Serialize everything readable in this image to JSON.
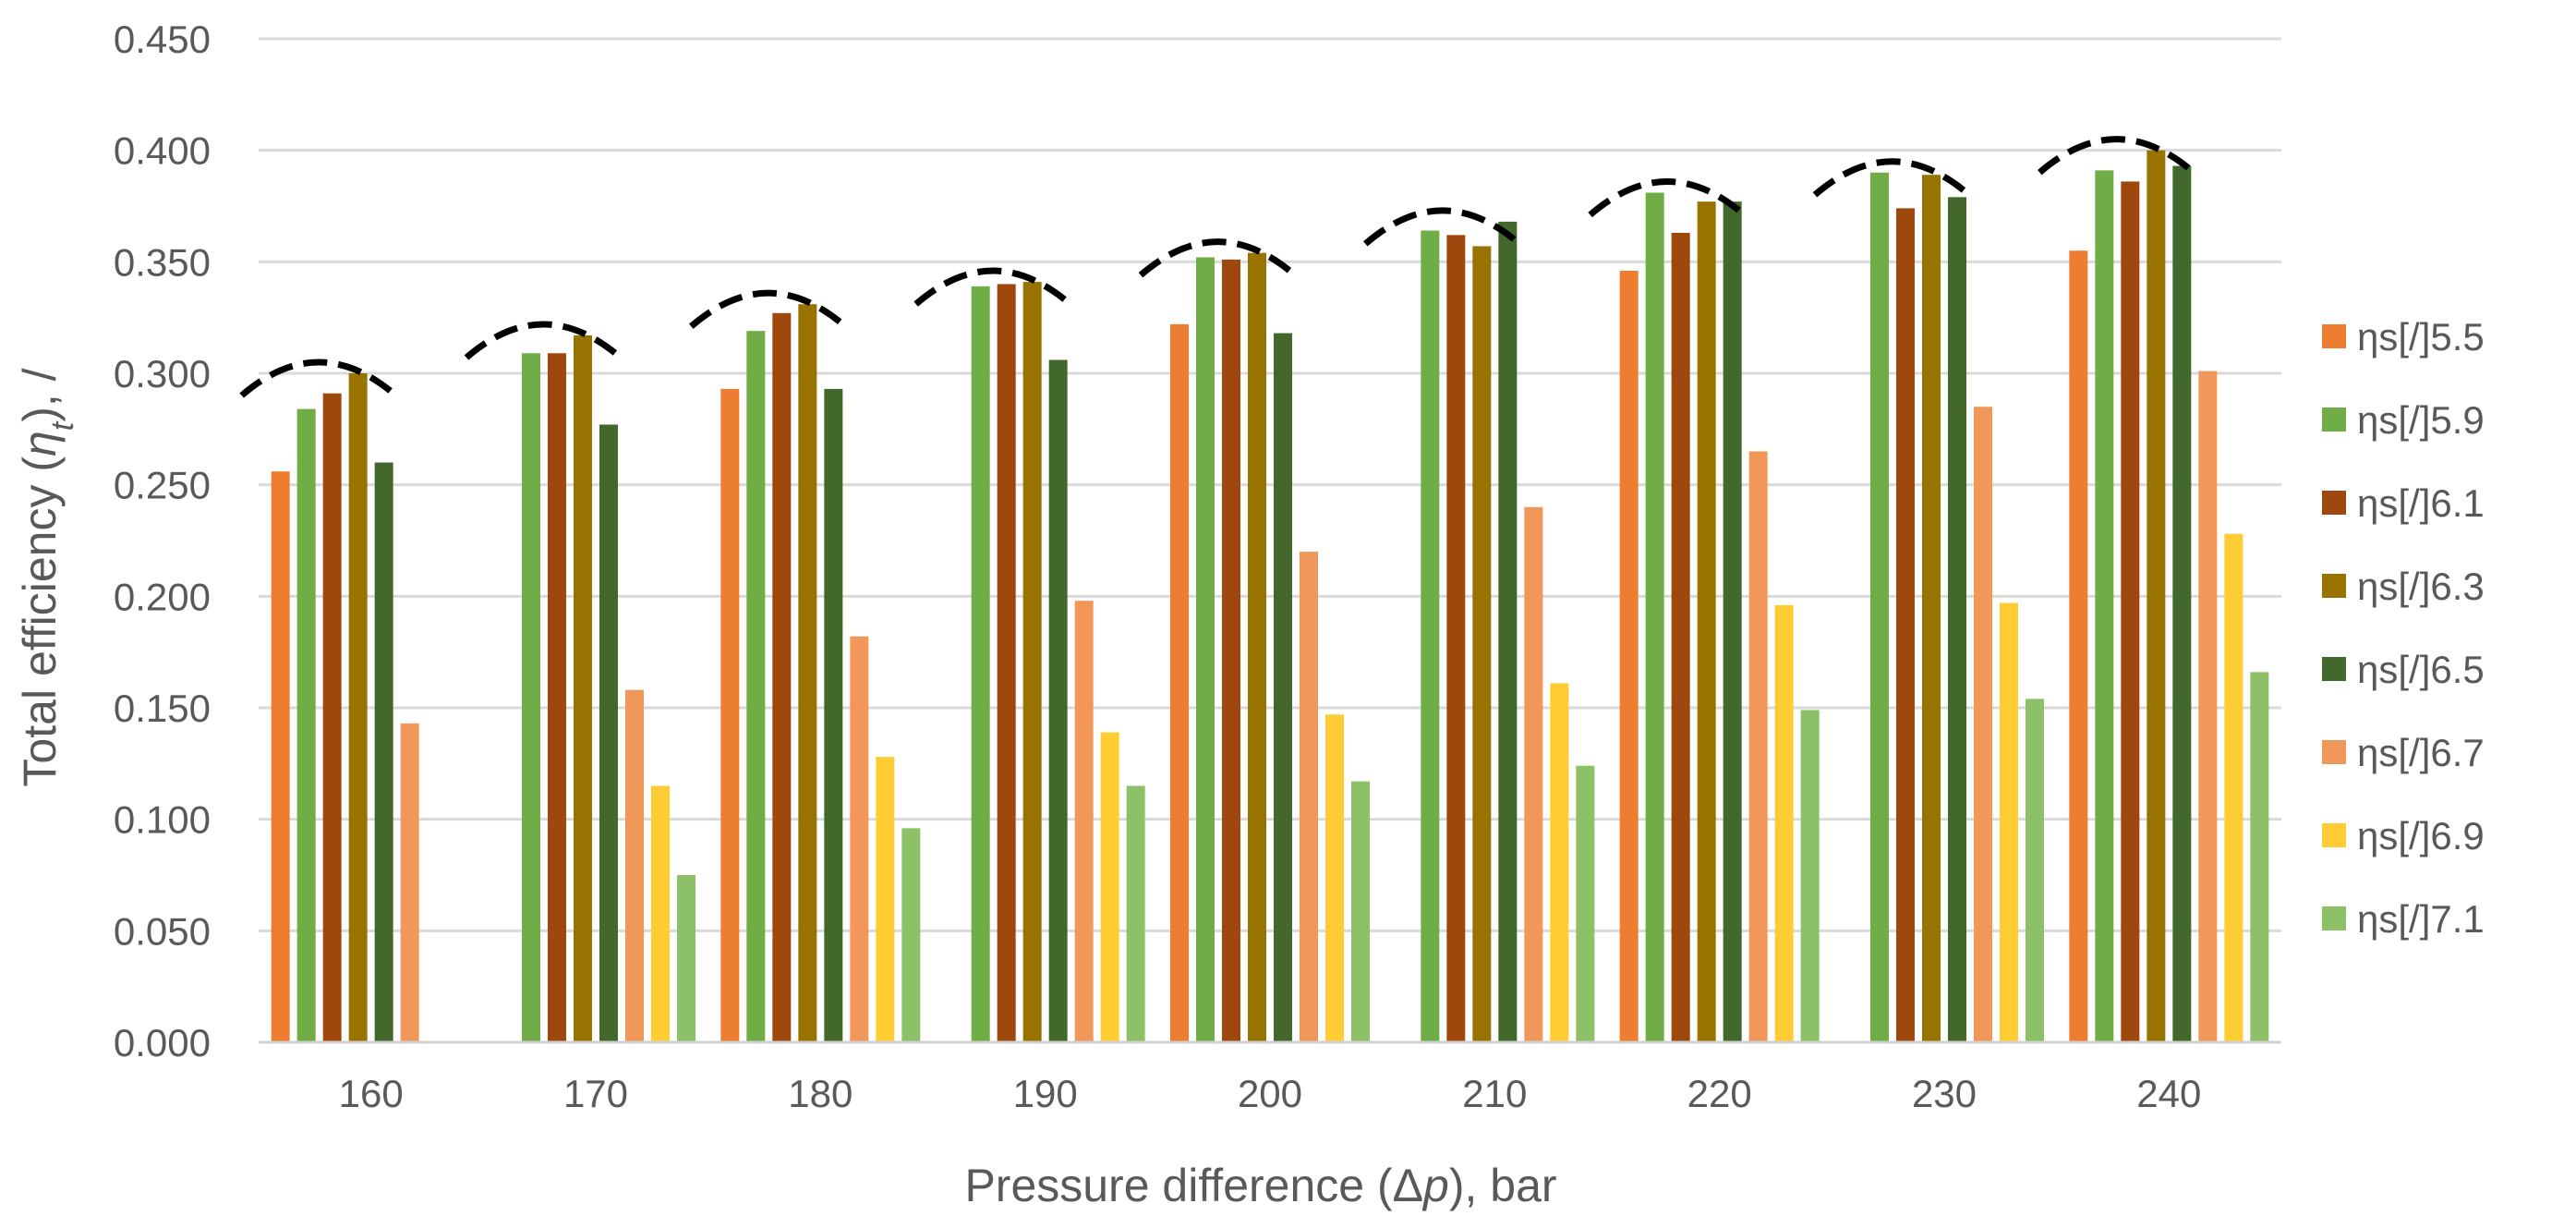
{
  "chart_data": {
    "type": "bar",
    "title": "",
    "xlabel_parts": [
      "Pressure difference (Δ",
      "p",
      "), bar"
    ],
    "ylabel_parts": [
      "Total efficiency (",
      "η",
      "t",
      "), /"
    ],
    "categories": [
      "160",
      "170",
      "180",
      "190",
      "200",
      "210",
      "220",
      "230",
      "240"
    ],
    "ylim": [
      0,
      0.45
    ],
    "ytick_labels": [
      "0.000",
      "0.050",
      "0.100",
      "0.150",
      "0.200",
      "0.250",
      "0.300",
      "0.350",
      "0.400",
      "0.450"
    ],
    "grid": true,
    "legend_position": "right",
    "annotation": "dashed arcs over the peak bars of each group",
    "series": [
      {
        "name": "ηs[/]5.5",
        "color": "#ED7D31",
        "values": [
          0.256,
          null,
          0.293,
          null,
          0.322,
          null,
          0.346,
          null,
          0.355
        ]
      },
      {
        "name": "ηs[/]5.9",
        "color": "#70AD47",
        "values": [
          0.284,
          0.309,
          0.319,
          0.339,
          0.352,
          0.364,
          0.381,
          0.39,
          0.391
        ]
      },
      {
        "name": "ηs[/]6.1",
        "color": "#9E480E",
        "values": [
          0.291,
          0.309,
          0.327,
          0.34,
          0.351,
          0.362,
          0.363,
          0.374,
          0.386
        ]
      },
      {
        "name": "ηs[/]6.3",
        "color": "#997300",
        "values": [
          0.3,
          0.317,
          0.331,
          0.341,
          0.354,
          0.357,
          0.377,
          0.389,
          0.4
        ]
      },
      {
        "name": "ηs[/]6.5",
        "color": "#43682B",
        "values": [
          0.26,
          0.277,
          0.293,
          0.306,
          0.318,
          0.368,
          0.377,
          0.379,
          0.393
        ]
      },
      {
        "name": "ηs[/]6.7",
        "color": "#F1975A",
        "values": [
          0.143,
          0.158,
          0.182,
          0.198,
          0.22,
          0.24,
          0.265,
          0.285,
          0.301
        ]
      },
      {
        "name": "ηs[/]6.9",
        "color": "#FFCD33",
        "values": [
          null,
          0.115,
          0.128,
          0.139,
          0.147,
          0.161,
          0.196,
          0.197,
          0.228
        ]
      },
      {
        "name": "ηs[/]7.1",
        "color": "#8CC168",
        "values": [
          null,
          0.075,
          0.096,
          0.115,
          0.117,
          0.124,
          0.149,
          0.154,
          0.166
        ]
      }
    ]
  }
}
